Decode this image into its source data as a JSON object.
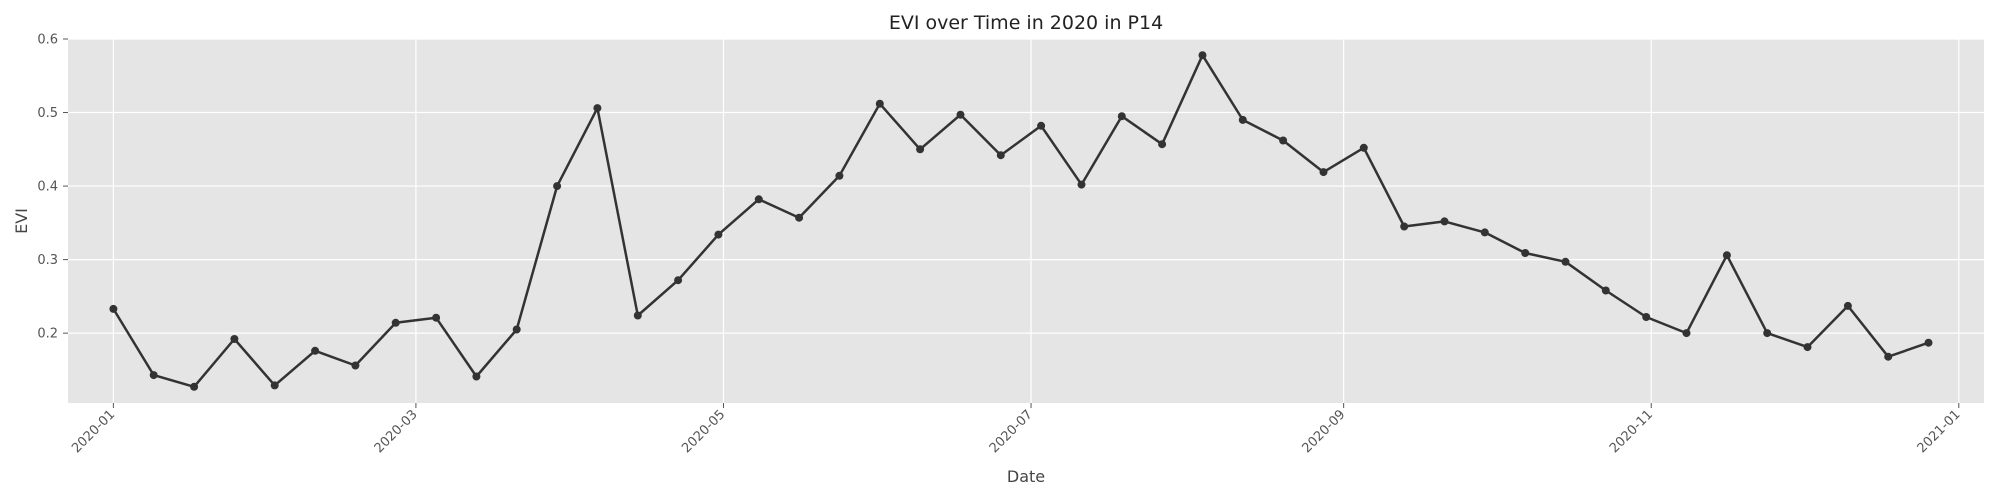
{
  "chart_data": {
    "type": "line",
    "title": "EVI over Time in 2020 in P14",
    "xlabel": "Date",
    "ylabel": "EVI",
    "xlim": [
      "2019-12-23",
      "2021-01-06"
    ],
    "ylim": [
      0.105,
      0.6
    ],
    "yticks": [
      0.2,
      0.3,
      0.4,
      0.5,
      0.6
    ],
    "ytick_labels": [
      "0.2",
      "0.3",
      "0.4",
      "0.5",
      "0.6"
    ],
    "xticks": [
      "2020-01-01",
      "2020-03-01",
      "2020-05-01",
      "2020-07-01",
      "2020-09-01",
      "2020-11-01",
      "2021-01-01"
    ],
    "xtick_labels": [
      "2020-01",
      "2020-03",
      "2020-05",
      "2020-07",
      "2020-09",
      "2020-11",
      "2021-01"
    ],
    "grid": true,
    "line_color": "#333333",
    "background_color": "#e5e5e5",
    "series": [
      {
        "x": [
          "2020-01-01",
          "2020-01-09",
          "2020-01-17",
          "2020-01-25",
          "2020-02-02",
          "2020-02-10",
          "2020-02-18",
          "2020-02-26",
          "2020-03-05",
          "2020-03-13",
          "2020-03-21",
          "2020-03-29",
          "2020-04-06",
          "2020-04-14",
          "2020-04-22",
          "2020-04-30",
          "2020-05-08",
          "2020-05-16",
          "2020-05-24",
          "2020-06-01",
          "2020-06-09",
          "2020-06-17",
          "2020-06-25",
          "2020-07-03",
          "2020-07-11",
          "2020-07-19",
          "2020-07-27",
          "2020-08-04",
          "2020-08-12",
          "2020-08-20",
          "2020-08-28",
          "2020-09-05",
          "2020-09-13",
          "2020-09-21",
          "2020-09-29",
          "2020-10-07",
          "2020-10-15",
          "2020-10-23",
          "2020-10-31",
          "2020-11-08",
          "2020-11-16",
          "2020-11-24",
          "2020-12-02",
          "2020-12-10",
          "2020-12-18",
          "2020-12-26"
        ],
        "y": [
          0.233,
          0.143,
          0.127,
          0.192,
          0.129,
          0.176,
          0.156,
          0.214,
          0.221,
          0.141,
          0.205,
          0.4,
          0.506,
          0.224,
          0.272,
          0.334,
          0.382,
          0.357,
          0.414,
          0.512,
          0.45,
          0.497,
          0.442,
          0.482,
          0.402,
          0.495,
          0.457,
          0.578,
          0.49,
          0.462,
          0.419,
          0.452,
          0.345,
          0.352,
          0.337,
          0.309,
          0.297,
          0.258,
          0.222,
          0.2,
          0.306,
          0.2,
          0.181,
          0.237,
          0.168,
          0.187
        ]
      }
    ]
  }
}
